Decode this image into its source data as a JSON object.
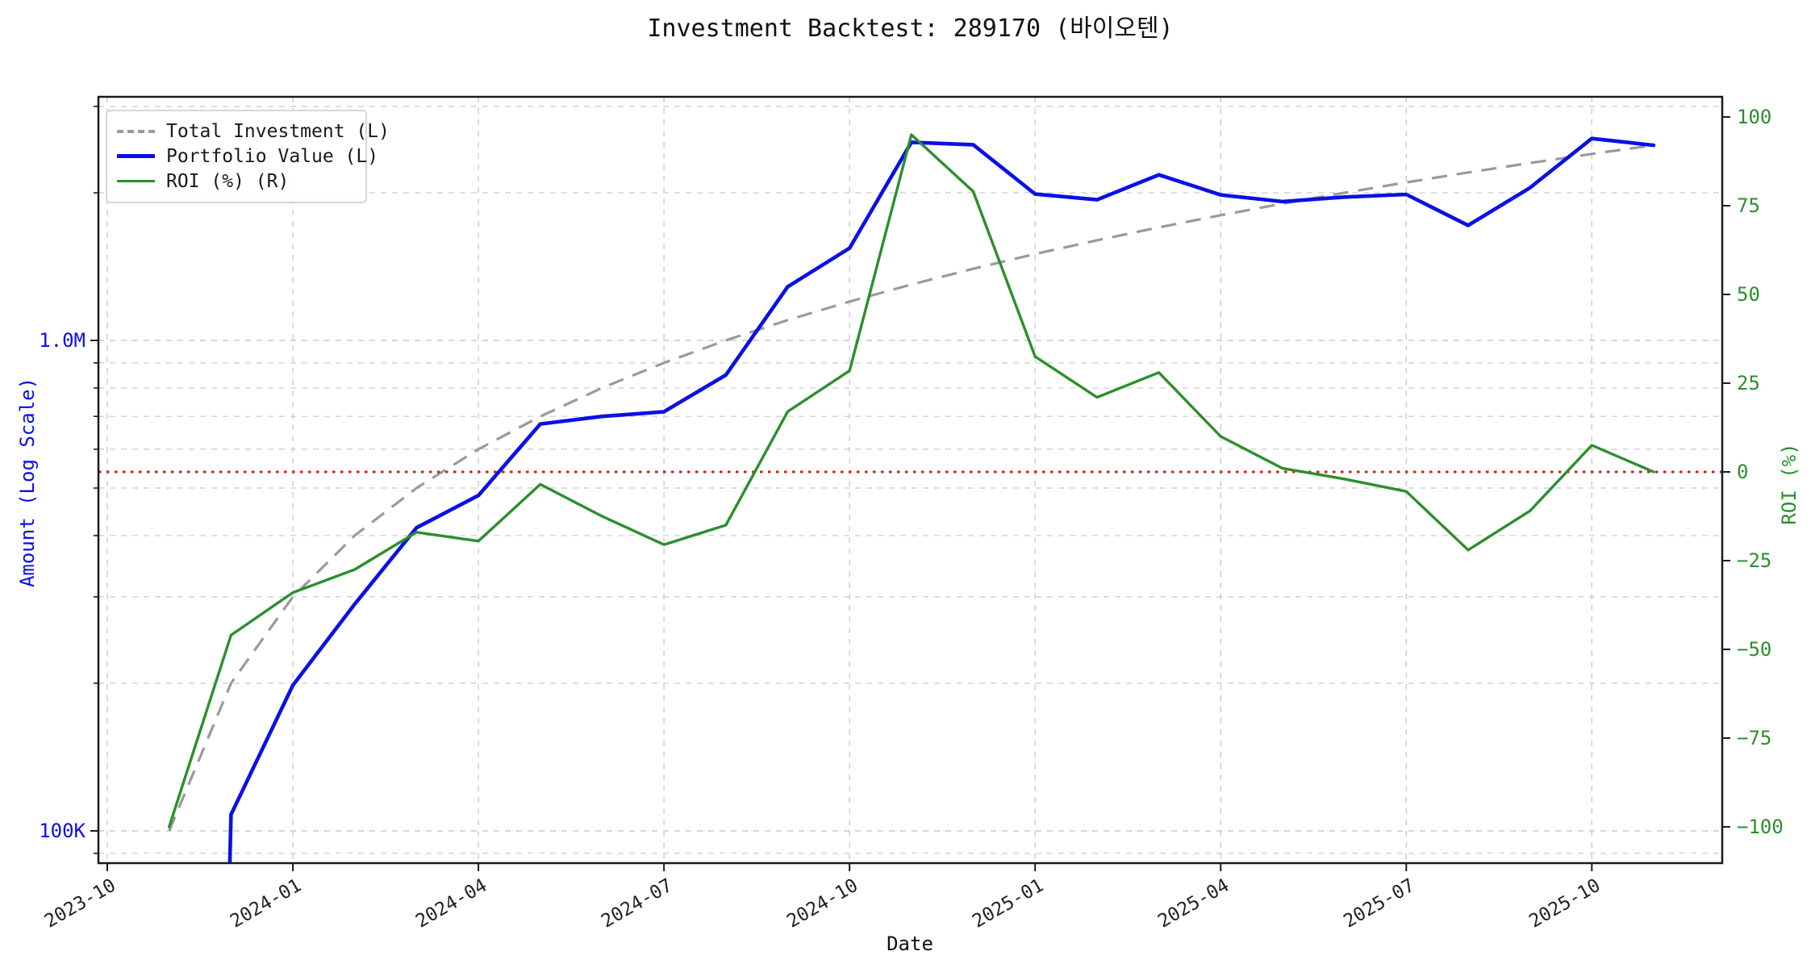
{
  "title": "Investment Backtest: 289170 (바이오텐)",
  "legend": {
    "total_investment": "Total Investment (L)",
    "portfolio_value": "Portfolio Value (L)",
    "roi": "ROI (%) (R)"
  },
  "axes": {
    "x_label": "Date",
    "y_left_label": "Amount (Log Scale)",
    "y_right_label": "ROI (%)",
    "y_left_tick_labels": [
      {
        "label": "1.0M",
        "value": 1000000
      },
      {
        "label": "100K",
        "value": 100000
      }
    ],
    "y_right_ticks": [
      100,
      75,
      50,
      25,
      0,
      -25,
      -50,
      -75,
      -100
    ],
    "x_tick_labels": [
      "2023-10",
      "2024-01",
      "2024-04",
      "2024-07",
      "2024-10",
      "2025-01",
      "2025-04",
      "2025-07",
      "2025-10"
    ]
  },
  "colors": {
    "investment_line": "#9a9a9a",
    "portfolio_line": "#0b10e6",
    "roi_line": "#2c8f2c",
    "zero_line": "#cf2020",
    "grid": "#c9c9c9",
    "spine": "#1a1a1a",
    "left_axis_text": "#0b10e6",
    "right_axis_text": "#2c8f2c",
    "tick_text": "#222222"
  },
  "chart_data": {
    "type": "line",
    "title": "Investment Backtest: 289170 (바이오텐)",
    "xlabel": "Date",
    "x": [
      "2023-11",
      "2023-12",
      "2024-01",
      "2024-02",
      "2024-03",
      "2024-04",
      "2024-05",
      "2024-06",
      "2024-07",
      "2024-08",
      "2024-09",
      "2024-10",
      "2024-11",
      "2024-12",
      "2025-01",
      "2025-02",
      "2025-03",
      "2025-04",
      "2025-05",
      "2025-06",
      "2025-07",
      "2025-08",
      "2025-09",
      "2025-10",
      "2025-11"
    ],
    "series": [
      {
        "name": "Total Investment (L)",
        "axis": "left",
        "style": "dashed",
        "values": [
          100000,
          200000,
          300000,
          400000,
          500000,
          600000,
          700000,
          800000,
          900000,
          1000000,
          1100000,
          1200000,
          1300000,
          1400000,
          1500000,
          1600000,
          1700000,
          1800000,
          1900000,
          2000000,
          2100000,
          2200000,
          2300000,
          2400000,
          2500000
        ]
      },
      {
        "name": "Portfolio Value (L)",
        "axis": "left",
        "style": "solid",
        "values": [
          0,
          108000,
          198000,
          290000,
          415000,
          483000,
          675500,
          700000,
          715500,
          850000,
          1287000,
          1542000,
          2535000,
          2506000,
          1987500,
          1936000,
          2176000,
          1980000,
          1919000,
          1960000,
          1984500,
          1716000,
          2047000,
          2580000,
          2500000
        ]
      },
      {
        "name": "ROI (%) (R)",
        "axis": "right",
        "style": "solid",
        "values": [
          -100,
          -46,
          -34,
          -27.5,
          -17,
          -19.5,
          -3.5,
          -12.5,
          -20.5,
          -15,
          17,
          28.5,
          95,
          79,
          32.5,
          21,
          28,
          10,
          1,
          -2,
          -5.5,
          -22,
          -11,
          7.5,
          0
        ]
      }
    ],
    "y_left": {
      "label": "Amount (Log Scale)",
      "scale": "log",
      "tick_labels": [
        "100K",
        "1.0M"
      ],
      "approx_range": [
        86000,
        3100000
      ]
    },
    "y_right": {
      "label": "ROI (%)",
      "ticks": [
        100,
        75,
        50,
        25,
        0,
        -25,
        -50,
        -75,
        -100
      ],
      "approx_range": [
        -110,
        105
      ]
    },
    "zero_reference_line": {
      "axis": "right",
      "value": 0,
      "style": "dotted"
    },
    "grid": true,
    "legend_position": "upper left"
  }
}
